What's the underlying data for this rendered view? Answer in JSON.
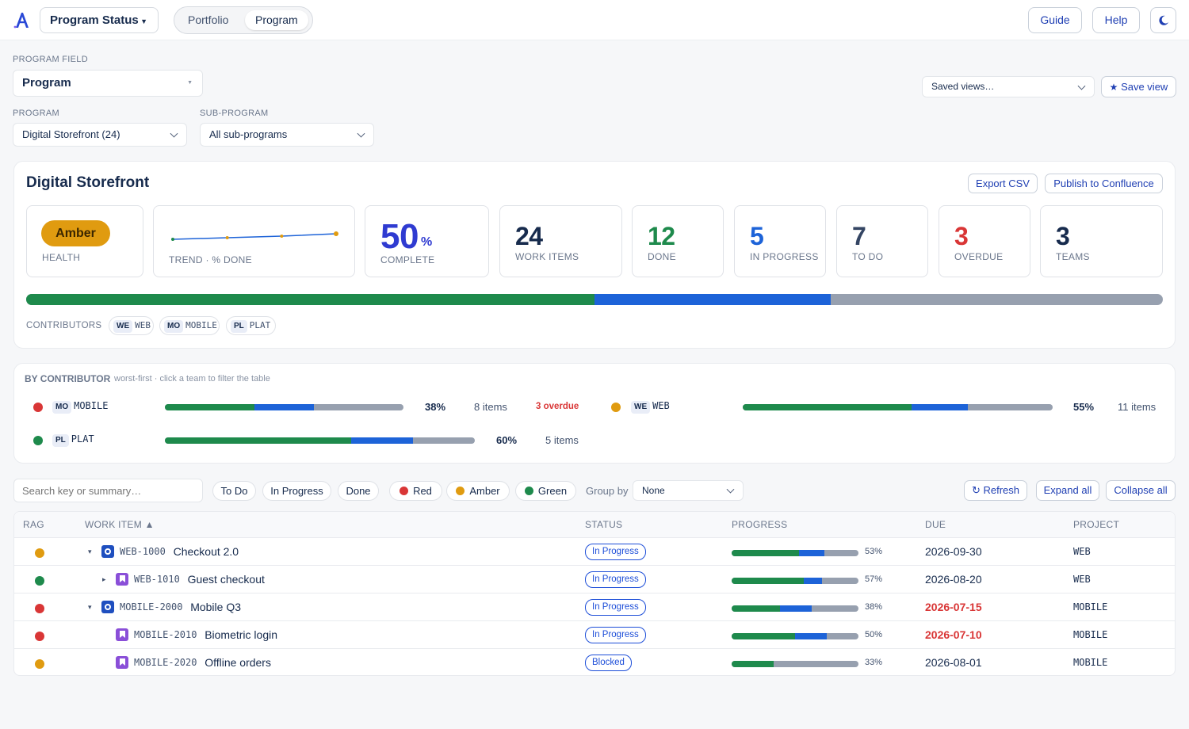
{
  "app": {
    "selector": "Program Status",
    "tabs": [
      "Portfolio",
      "Program"
    ],
    "active_tab": "Program",
    "buttons": {
      "guide": "Guide",
      "help": "Help"
    }
  },
  "filters": {
    "program_field_label": "PROGRAM FIELD",
    "program_field_value": "Program",
    "program_label": "PROGRAM",
    "program_value": "Digital Storefront (24)",
    "subprogram_label": "SUB-PROGRAM",
    "subprogram_value": "All sub-programs",
    "saved_views": "Saved views…",
    "save_view": "Save view"
  },
  "summary": {
    "title": "Digital Storefront",
    "export": "Export CSV",
    "publish": "Publish to Confluence",
    "health": "Amber",
    "health_label": "HEALTH",
    "trend_label": "TREND · % DONE",
    "trend": [
      40,
      42,
      44,
      47
    ],
    "complete_value": "50",
    "complete_unit": "%",
    "complete_label": "COMPLETE",
    "kpis": [
      {
        "value": "24",
        "label": "WORK ITEMS",
        "color": "#172b4d"
      },
      {
        "value": "12",
        "label": "DONE",
        "color": "#1e8a4c"
      },
      {
        "value": "5",
        "label": "IN PROGRESS",
        "color": "#1d63d8"
      },
      {
        "value": "7",
        "label": "TO DO",
        "color": "#344563"
      },
      {
        "value": "3",
        "label": "OVERDUE",
        "color": "#d93636"
      },
      {
        "value": "3",
        "label": "TEAMS",
        "color": "#172b4d"
      }
    ],
    "progress": {
      "done": 0.5,
      "in_progress": 0.208
    },
    "contributors_label": "CONTRIBUTORS",
    "contributors": [
      {
        "tag": "WE",
        "name": "WEB"
      },
      {
        "tag": "MO",
        "name": "MOBILE"
      },
      {
        "tag": "PL",
        "name": "PLAT"
      }
    ]
  },
  "by_contributor": {
    "title": "BY CONTRIBUTOR",
    "hint": "worst-first · click a team to filter the table",
    "teams": [
      {
        "tag": "MO",
        "name": "MOBILE",
        "rag": "#d93636",
        "done": 0.375,
        "in_progress": 0.25,
        "pct": "38%",
        "items": "8 items",
        "overdue": "3 overdue"
      },
      {
        "tag": "WE",
        "name": "WEB",
        "rag": "#e09b10",
        "done": 0.545,
        "in_progress": 0.182,
        "pct": "55%",
        "items": "11 items",
        "overdue": ""
      },
      {
        "tag": "PL",
        "name": "PLAT",
        "rag": "#1e8a4c",
        "done": 0.6,
        "in_progress": 0.2,
        "pct": "60%",
        "items": "5 items",
        "overdue": ""
      }
    ]
  },
  "toolbar": {
    "search_placeholder": "Search key or summary…",
    "chips": [
      "To Do",
      "In Progress",
      "Done"
    ],
    "rag_chips": [
      {
        "label": "Red",
        "color": "#d93636"
      },
      {
        "label": "Amber",
        "color": "#e09b10"
      },
      {
        "label": "Green",
        "color": "#1e8a4c"
      }
    ],
    "group_by_label": "Group by",
    "group_by_value": "None",
    "refresh": "Refresh",
    "expand_all": "Expand all",
    "collapse_all": "Collapse all"
  },
  "table": {
    "columns": [
      "RAG",
      "WORK ITEM ▲",
      "STATUS",
      "PROGRESS",
      "DUE",
      "PROJECT"
    ],
    "rows": [
      {
        "rag": "#e09b10",
        "expander": "▾",
        "type": "epic",
        "key": "WEB-1000",
        "summary": "Checkout 2.0",
        "status": "In Progress",
        "done": 0.53,
        "in_progress": 0.2,
        "pct": "53%",
        "due": "2026-09-30",
        "overdue": false,
        "project": "WEB"
      },
      {
        "rag": "#1e8a4c",
        "expander": "▸",
        "type": "story",
        "key": "WEB-1010",
        "summary": "Guest checkout",
        "status": "In Progress",
        "done": 0.57,
        "in_progress": 0.14,
        "pct": "57%",
        "due": "2026-08-20",
        "overdue": false,
        "project": "WEB"
      },
      {
        "rag": "#d93636",
        "expander": "▾",
        "type": "epic",
        "key": "MOBILE-2000",
        "summary": "Mobile Q3",
        "status": "In Progress",
        "done": 0.38,
        "in_progress": 0.25,
        "pct": "38%",
        "due": "2026-07-15",
        "overdue": true,
        "project": "MOBILE"
      },
      {
        "rag": "#d93636",
        "expander": "",
        "type": "story",
        "key": "MOBILE-2010",
        "summary": "Biometric login",
        "status": "In Progress",
        "done": 0.5,
        "in_progress": 0.25,
        "pct": "50%",
        "due": "2026-07-10",
        "overdue": true,
        "project": "MOBILE"
      },
      {
        "rag": "#e09b10",
        "expander": "",
        "type": "story",
        "key": "MOBILE-2020",
        "summary": "Offline orders",
        "status": "Blocked",
        "done": 0.33,
        "in_progress": 0,
        "pct": "33%",
        "due": "2026-08-01",
        "overdue": false,
        "project": "MOBILE"
      }
    ]
  },
  "colors": {
    "done": "#1e8a4c",
    "in_progress": "#1d63d8",
    "todo": "#97a0af",
    "accent": "#1f3fb3",
    "amber": "#e09b10"
  }
}
